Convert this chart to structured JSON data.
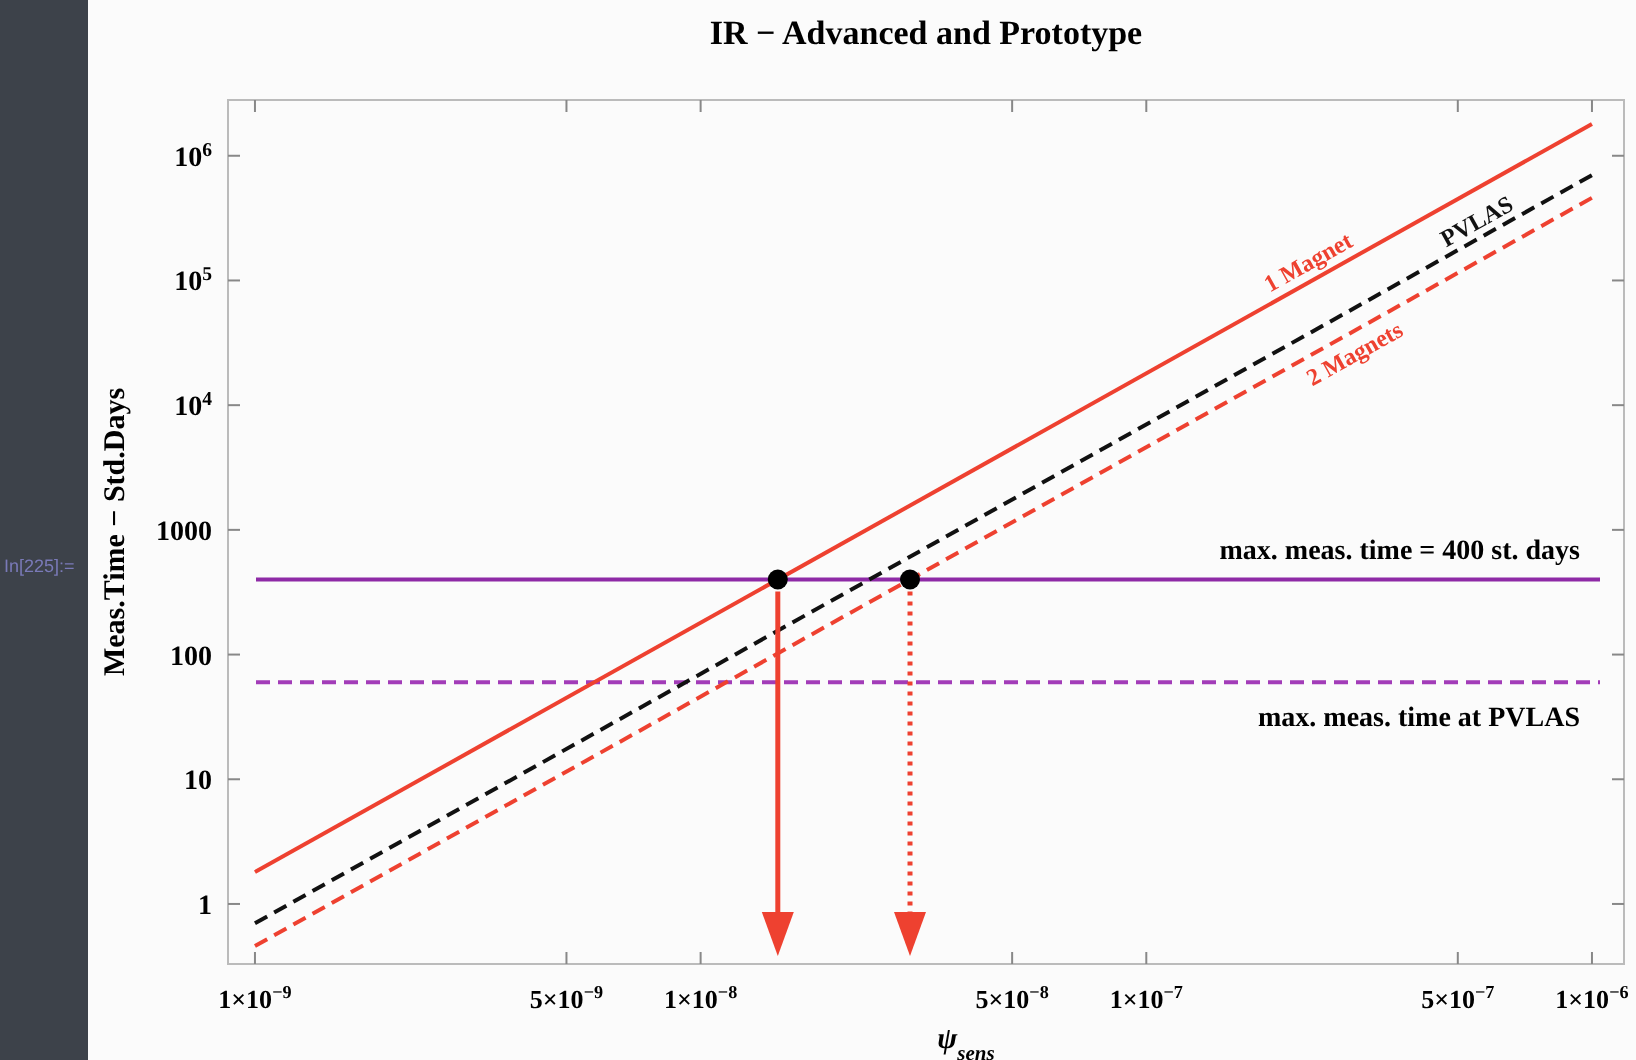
{
  "chart_data": {
    "type": "line",
    "title": "IR − Advanced and Prototype",
    "xlabel": "ψ$_{sens}$",
    "ylabel": "Meas.Time − Std.Days",
    "log": "xy",
    "grid": false,
    "marker": "none",
    "xlim": [
      8.7e-10,
      1.18e-06
    ],
    "xticks": [
      {
        "value": 1e-09,
        "label": "1×10$^{−9}$"
      },
      {
        "value": 5e-09,
        "label": "5×10$^{−9}$"
      },
      {
        "value": 1e-08,
        "label": "1×10$^{−8}$"
      },
      {
        "value": 5e-08,
        "label": "5×10$^{−8}$"
      },
      {
        "value": 1e-07,
        "label": "1×10$^{−7}$"
      },
      {
        "value": 5e-07,
        "label": "5×10$^{−7}$"
      },
      {
        "value": 1e-06,
        "label": "1×10$^{−6}$"
      }
    ],
    "ylim": [
      0.33,
      2800000.0
    ],
    "yticks": [
      1,
      10,
      100,
      1000,
      {
        "value": 10000,
        "label": "10$^{4}$"
      },
      {
        "value": 100000,
        "label": "10$^{5}$"
      },
      {
        "value": 1000000,
        "label": "10$^{6}$"
      }
    ],
    "series": [
      {
        "name": "1 Magnet",
        "color": "#ee4130",
        "line_style": "solid",
        "x": [
          1e-09,
          1e-06
        ],
        "values": [
          1.8,
          1800000
        ]
      },
      {
        "name": "PVLAS",
        "color": "#111111",
        "line_style": "dashed",
        "x": [
          1e-09,
          1e-06
        ],
        "values": [
          0.7,
          700000
        ]
      },
      {
        "name": "2 Magnets",
        "color": "#ee4130",
        "line_style": "dashed",
        "x": [
          1e-09,
          1e-06
        ],
        "values": [
          0.46,
          460000
        ]
      },
      {
        "type": "scatter",
        "marker": "circle",
        "color": "#000000",
        "x": [
          1.49e-08,
          2.95e-08
        ],
        "values": [
          400,
          400
        ]
      }
    ],
    "ref_lines": [
      {
        "axis": "y",
        "value": 400,
        "label": "max. meas. time = 400 st. days",
        "color": "#8e2aa6",
        "line_style": "solid"
      },
      {
        "axis": "y",
        "value": 60,
        "label": "max. meas. time at PVLAS",
        "color": "#a23cb8",
        "line_style": "dashed"
      }
    ],
    "annotations": [
      "In[225]:="
    ]
  }
}
